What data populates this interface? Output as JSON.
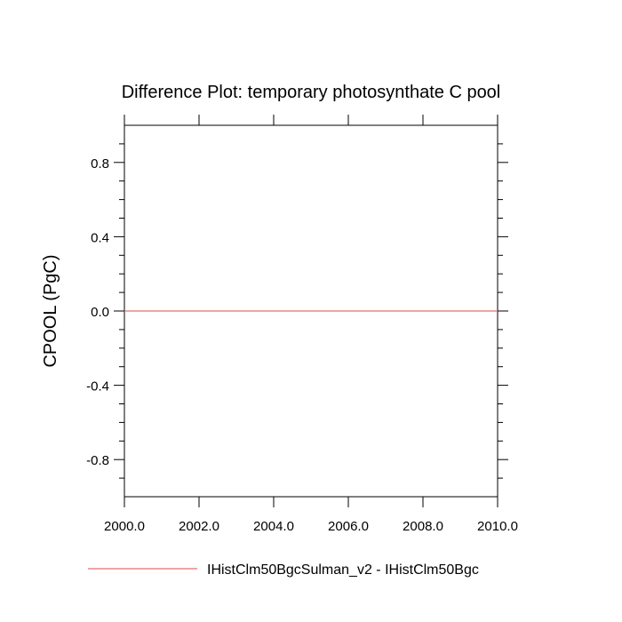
{
  "chart_data": {
    "type": "line",
    "title": "Difference Plot: temporary photosynthate C pool",
    "xlabel": "",
    "ylabel": "CPOOL  (PgC)",
    "xlim": [
      2000.0,
      2010.0
    ],
    "ylim": [
      -1.0,
      1.0
    ],
    "x_ticks": [
      2000.0,
      2002.0,
      2004.0,
      2006.0,
      2008.0,
      2010.0
    ],
    "x_tick_labels": [
      "2000.0",
      "2002.0",
      "2004.0",
      "2006.0",
      "2008.0",
      "2010.0"
    ],
    "y_ticks": [
      0.8,
      0.4,
      0.0,
      -0.4,
      -0.8
    ],
    "y_tick_labels": [
      "0.8",
      "0.4",
      "0.0",
      "-0.4",
      "-0.8"
    ],
    "grid": false,
    "legend_position": "bottom",
    "series": [
      {
        "name": "IHistClm50BgcSulman_v2 - IHistClm50Bgc",
        "color": "#e0706e",
        "x": [
          2000.0,
          2010.0
        ],
        "y": [
          0.0,
          0.0
        ]
      }
    ]
  }
}
